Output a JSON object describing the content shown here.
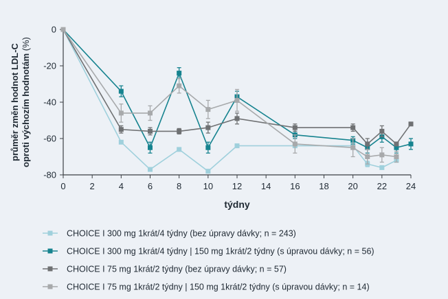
{
  "chart_data": {
    "type": "line",
    "xlabel": "týdny",
    "ylabel_lines": [
      "průměr změn hodnot LDL-C",
      "oproti výchozím hodnotám"
    ],
    "ylabel_unit": "(%)",
    "xlim": [
      0,
      24
    ],
    "ylim": [
      -80,
      0
    ],
    "x_ticks": [
      0,
      2,
      4,
      6,
      8,
      10,
      12,
      14,
      16,
      18,
      20,
      22,
      24
    ],
    "y_ticks": [
      0,
      -20,
      -40,
      -60,
      -80
    ],
    "grid": false,
    "legend_position": "bottom",
    "series": [
      {
        "name": "CHOICE I 300 mg 1krát/4 týdny (bez úpravy dávky; n = 243)",
        "color": "#9fd0dc",
        "marker": "square",
        "points": [
          [
            0,
            0
          ],
          [
            4,
            -62
          ],
          [
            6,
            -77
          ],
          [
            8,
            -66
          ],
          [
            10,
            -78
          ],
          [
            12,
            -64
          ],
          [
            16,
            -64
          ],
          [
            20,
            -64
          ],
          [
            21,
            -74
          ],
          [
            22,
            -76
          ],
          [
            23,
            -72
          ]
        ],
        "errors": [
          0,
          0,
          0,
          0,
          0,
          0,
          0,
          0,
          1.5,
          0,
          0
        ]
      },
      {
        "name": "CHOICE I 300 mg 1krát/4 týdny | 150 mg 1krát/2 týdny (s úpravou dávky; n = 56)",
        "color": "#16838f",
        "marker": "square",
        "points": [
          [
            0,
            0
          ],
          [
            4,
            -34
          ],
          [
            6,
            -65
          ],
          [
            8,
            -24
          ],
          [
            10,
            -65
          ],
          [
            12,
            -37
          ],
          [
            16,
            -58
          ],
          [
            20,
            -61
          ],
          [
            21,
            -65
          ],
          [
            22,
            -59
          ],
          [
            23,
            -65
          ],
          [
            24,
            -63
          ]
        ],
        "errors": [
          0,
          3,
          3,
          3,
          3,
          3,
          2,
          2,
          3,
          3,
          3,
          3
        ]
      },
      {
        "name": "CHOICE I 75 mg 1krát/2 týdny (bez úpravy dávky; n = 57)",
        "color": "#6f7173",
        "marker": "square",
        "points": [
          [
            0,
            0
          ],
          [
            4,
            -55
          ],
          [
            6,
            -56
          ],
          [
            8,
            -56
          ],
          [
            10,
            -54
          ],
          [
            12,
            -49
          ],
          [
            16,
            -54
          ],
          [
            20,
            -54
          ],
          [
            21,
            -63
          ],
          [
            22,
            -56
          ],
          [
            23,
            -63
          ],
          [
            24,
            -52
          ]
        ],
        "errors": [
          0,
          2,
          2,
          1.5,
          3,
          3,
          2,
          2,
          3,
          3,
          0,
          0
        ]
      },
      {
        "name": "CHOICE I 75 mg 1krát/2 týdny | 150 mg 1krát/2 týdny (s úpravou dávky; n = 14)",
        "color": "#a7a9ab",
        "marker": "square",
        "points": [
          [
            0,
            0
          ],
          [
            4,
            -46
          ],
          [
            6,
            -46
          ],
          [
            8,
            -31
          ],
          [
            10,
            -44
          ],
          [
            12,
            -39
          ],
          [
            16,
            -63
          ],
          [
            20,
            -65
          ],
          [
            21,
            -70
          ],
          [
            22,
            -69
          ],
          [
            23,
            -70
          ]
        ],
        "errors": [
          0,
          5,
          4,
          4,
          5,
          6,
          5,
          5,
          4,
          4,
          3
        ]
      }
    ]
  }
}
